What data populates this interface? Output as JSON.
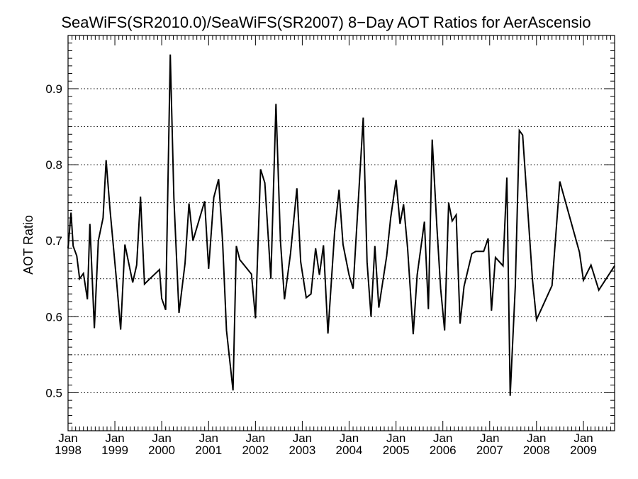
{
  "chart_data": {
    "type": "line",
    "title": "SeaWiFS(SR2010.0)/SeaWiFS(SR2007) 8−Day AOT Ratios for AerAscensio",
    "xlabel": "",
    "ylabel": "AOT Ratio",
    "xlim": [
      "1998-01-01",
      "2009-09-01"
    ],
    "ylim": [
      0.45,
      0.97
    ],
    "yticks": [
      0.5,
      0.6,
      0.7,
      0.8,
      0.9
    ],
    "ytick_labels": [
      "0.5",
      "0.6",
      "0.7",
      "0.8",
      "0.9"
    ],
    "ygrid_dotted": [
      0.5,
      0.55,
      0.6,
      0.65,
      0.7,
      0.75,
      0.8,
      0.85,
      0.9
    ],
    "xticks": [
      {
        "date": "1998-01-01",
        "month": "Jan",
        "year": "1998"
      },
      {
        "date": "1999-01-01",
        "month": "Jan",
        "year": "1999"
      },
      {
        "date": "2000-01-01",
        "month": "Jan",
        "year": "2000"
      },
      {
        "date": "2001-01-01",
        "month": "Jan",
        "year": "2001"
      },
      {
        "date": "2002-01-01",
        "month": "Jan",
        "year": "2002"
      },
      {
        "date": "2003-01-01",
        "month": "Jan",
        "year": "2003"
      },
      {
        "date": "2004-01-01",
        "month": "Jan",
        "year": "2004"
      },
      {
        "date": "2005-01-01",
        "month": "Jan",
        "year": "2005"
      },
      {
        "date": "2006-01-01",
        "month": "Jan",
        "year": "2006"
      },
      {
        "date": "2007-01-01",
        "month": "Jan",
        "year": "2007"
      },
      {
        "date": "2008-01-01",
        "month": "Jan",
        "year": "2008"
      },
      {
        "date": "2009-01-01",
        "month": "Jan",
        "year": "2009"
      }
    ],
    "grid": "horizontal-dotted",
    "series": [
      {
        "name": "",
        "color": "#000000",
        "points": [
          [
            "1998-01-01",
            0.69
          ],
          [
            "1998-01-24",
            0.737
          ],
          [
            "1998-02-10",
            0.693
          ],
          [
            "1998-03-10",
            0.68
          ],
          [
            "1998-04-01",
            0.65
          ],
          [
            "1998-05-01",
            0.657
          ],
          [
            "1998-06-01",
            0.623
          ],
          [
            "1998-06-20",
            0.722
          ],
          [
            "1998-07-25",
            0.585
          ],
          [
            "1998-08-25",
            0.7
          ],
          [
            "1998-10-01",
            0.73
          ],
          [
            "1998-10-25",
            0.806
          ],
          [
            "1998-11-25",
            0.74
          ],
          [
            "1999-01-15",
            0.645
          ],
          [
            "1999-02-15",
            0.583
          ],
          [
            "1999-03-20",
            0.695
          ],
          [
            "1999-05-20",
            0.645
          ],
          [
            "1999-06-20",
            0.668
          ],
          [
            "1999-07-20",
            0.758
          ],
          [
            "1999-08-20",
            0.643
          ],
          [
            "1999-10-01",
            0.65
          ],
          [
            "1999-12-15",
            0.662
          ],
          [
            "2000-01-01",
            0.624
          ],
          [
            "2000-02-01",
            0.609
          ],
          [
            "2000-03-08",
            0.945
          ],
          [
            "2000-04-05",
            0.756
          ],
          [
            "2000-05-15",
            0.605
          ],
          [
            "2000-07-01",
            0.67
          ],
          [
            "2000-08-01",
            0.749
          ],
          [
            "2000-09-01",
            0.7
          ],
          [
            "2000-12-01",
            0.752
          ],
          [
            "2001-01-01",
            0.663
          ],
          [
            "2001-02-10",
            0.757
          ],
          [
            "2001-03-20",
            0.781
          ],
          [
            "2001-04-20",
            0.699
          ],
          [
            "2001-05-20",
            0.582
          ],
          [
            "2001-07-10",
            0.503
          ],
          [
            "2001-08-05",
            0.693
          ],
          [
            "2001-09-01",
            0.675
          ],
          [
            "2001-12-01",
            0.656
          ],
          [
            "2002-01-01",
            0.598
          ],
          [
            "2002-02-10",
            0.794
          ],
          [
            "2002-03-15",
            0.776
          ],
          [
            "2002-05-01",
            0.65
          ],
          [
            "2002-06-10",
            0.88
          ],
          [
            "2002-07-15",
            0.7
          ],
          [
            "2002-08-15",
            0.623
          ],
          [
            "2002-10-01",
            0.683
          ],
          [
            "2002-11-20",
            0.769
          ],
          [
            "2002-12-20",
            0.672
          ],
          [
            "2003-02-01",
            0.625
          ],
          [
            "2003-03-10",
            0.63
          ],
          [
            "2003-04-15",
            0.69
          ],
          [
            "2003-05-15",
            0.655
          ],
          [
            "2003-06-15",
            0.694
          ],
          [
            "2003-07-20",
            0.578
          ],
          [
            "2003-09-10",
            0.711
          ],
          [
            "2003-10-15",
            0.767
          ],
          [
            "2003-11-15",
            0.695
          ],
          [
            "2004-01-01",
            0.655
          ],
          [
            "2004-02-01",
            0.637
          ],
          [
            "2004-04-20",
            0.862
          ],
          [
            "2004-05-20",
            0.672
          ],
          [
            "2004-06-20",
            0.6
          ],
          [
            "2004-07-20",
            0.693
          ],
          [
            "2004-08-20",
            0.612
          ],
          [
            "2004-10-20",
            0.68
          ],
          [
            "2004-11-20",
            0.73
          ],
          [
            "2005-01-01",
            0.78
          ],
          [
            "2005-02-01",
            0.722
          ],
          [
            "2005-03-01",
            0.748
          ],
          [
            "2005-04-01",
            0.69
          ],
          [
            "2005-05-15",
            0.577
          ],
          [
            "2005-06-15",
            0.655
          ],
          [
            "2005-08-10",
            0.725
          ],
          [
            "2005-09-10",
            0.61
          ],
          [
            "2005-10-10",
            0.833
          ],
          [
            "2005-11-15",
            0.72
          ],
          [
            "2005-12-15",
            0.637
          ],
          [
            "2006-01-15",
            0.582
          ],
          [
            "2006-02-15",
            0.75
          ],
          [
            "2006-03-15",
            0.726
          ],
          [
            "2006-04-15",
            0.734
          ],
          [
            "2006-05-15",
            0.591
          ],
          [
            "2006-06-15",
            0.64
          ],
          [
            "2006-08-15",
            0.683
          ],
          [
            "2006-09-15",
            0.686
          ],
          [
            "2006-11-15",
            0.686
          ],
          [
            "2006-12-20",
            0.703
          ],
          [
            "2007-01-15",
            0.608
          ],
          [
            "2007-02-15",
            0.678
          ],
          [
            "2007-04-15",
            0.667
          ],
          [
            "2007-05-15",
            0.783
          ],
          [
            "2007-06-10",
            0.496
          ],
          [
            "2007-07-20",
            0.64
          ],
          [
            "2007-08-20",
            0.845
          ],
          [
            "2007-09-15",
            0.839
          ],
          [
            "2007-12-01",
            0.648
          ],
          [
            "2008-01-01",
            0.596
          ],
          [
            "2008-05-01",
            0.641
          ],
          [
            "2008-07-01",
            0.778
          ],
          [
            "2008-12-01",
            0.685
          ],
          [
            "2009-01-01",
            0.648
          ],
          [
            "2009-03-01",
            0.668
          ],
          [
            "2009-05-01",
            0.635
          ],
          [
            "2009-09-01",
            0.667
          ]
        ]
      }
    ]
  }
}
